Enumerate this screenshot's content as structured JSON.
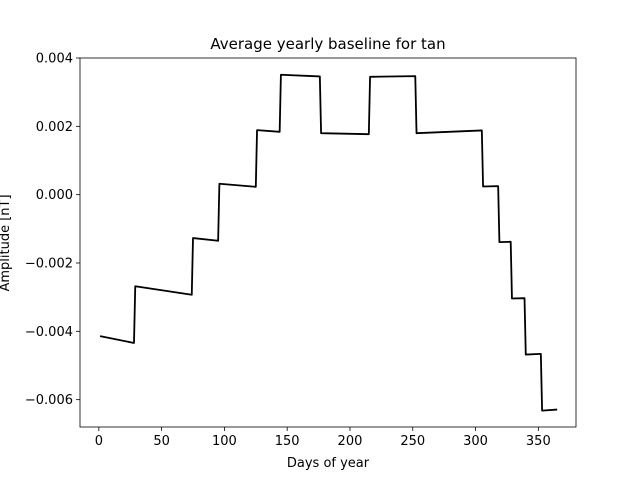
{
  "chart_data": {
    "type": "line",
    "title": "Average yearly baseline for tan",
    "xlabel": "Days of year",
    "ylabel": "Amplitude [nT]",
    "xlim": [
      -15,
      380
    ],
    "ylim": [
      -0.0068,
      0.004
    ],
    "xticks": [
      0,
      50,
      100,
      150,
      200,
      250,
      300,
      350
    ],
    "xtick_labels": [
      "0",
      "50",
      "100",
      "150",
      "200",
      "250",
      "300",
      "350"
    ],
    "yticks": [
      0.004,
      0.002,
      0.0,
      -0.002,
      -0.004,
      -0.006
    ],
    "ytick_labels": [
      "0.004",
      "0.002",
      "0.000",
      "−0.002",
      "−0.004",
      "−0.006"
    ],
    "grid": false,
    "series": [
      {
        "color": "#000000",
        "x": [
          1,
          28,
          29,
          74,
          75,
          95,
          96,
          125,
          126,
          144,
          145,
          176,
          177,
          215,
          216,
          252,
          253,
          305,
          306,
          318,
          319,
          328,
          329,
          339,
          340,
          352,
          353,
          365
        ],
        "y": [
          -0.00414,
          -0.00434,
          -0.00268,
          -0.00293,
          -0.00127,
          -0.00135,
          0.00032,
          0.00023,
          0.00189,
          0.00184,
          0.00351,
          0.00346,
          0.0018,
          0.00177,
          0.00345,
          0.00347,
          0.0018,
          0.00188,
          0.00024,
          0.00025,
          -0.00139,
          -0.00138,
          -0.00304,
          -0.00303,
          -0.00468,
          -0.00466,
          -0.00632,
          -0.00629
        ]
      }
    ]
  }
}
